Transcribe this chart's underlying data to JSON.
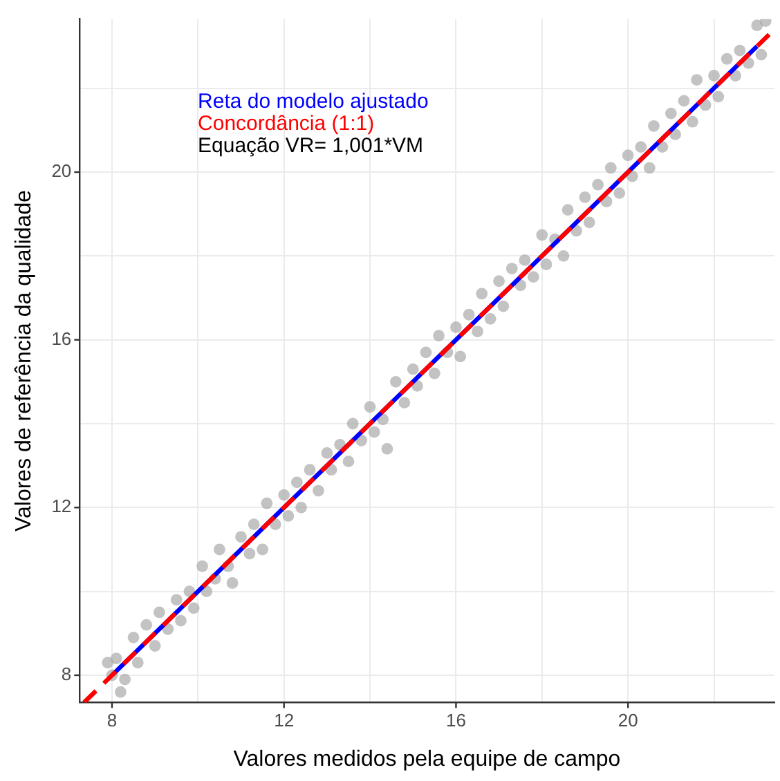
{
  "chart_data": {
    "type": "scatter",
    "xlabel": "Valores medidos pela equipe de campo",
    "ylabel": "Valores de referência da qualidade",
    "xlim": [
      7.25,
      23.4
    ],
    "ylim": [
      7.35,
      23.65
    ],
    "xticks": [
      8,
      {
        "value": 10,
        "label": null
      },
      12,
      {
        "value": 14,
        "label": null
      },
      16,
      {
        "value": 18,
        "label": null
      },
      20,
      {
        "value": 22,
        "label": null
      }
    ],
    "yticks": [
      8,
      {
        "value": 10,
        "label": null
      },
      12,
      {
        "value": 14,
        "label": null
      },
      16,
      {
        "value": 18,
        "label": null
      },
      20,
      {
        "value": 22,
        "label": null
      }
    ],
    "grid": true,
    "legend": "top left",
    "annotations": [
      "Equação VR= 1,001*VM"
    ],
    "series": [
      {
        "marker": "circle",
        "color": "#a9a9a9",
        "x": [
          7.9,
          8.0,
          8.1,
          8.2,
          8.3,
          8.5,
          8.6,
          8.8,
          9.0,
          9.1,
          9.3,
          9.5,
          9.6,
          9.8,
          9.9,
          10.1,
          10.2,
          10.4,
          10.5,
          10.7,
          10.8,
          11.0,
          11.2,
          11.3,
          11.5,
          11.6,
          11.8,
          12.0,
          12.1,
          12.3,
          12.4,
          12.6,
          12.8,
          13.0,
          13.1,
          13.3,
          13.5,
          13.6,
          13.8,
          14.0,
          14.1,
          14.3,
          14.4,
          14.6,
          14.8,
          15.0,
          15.1,
          15.3,
          15.5,
          15.6,
          15.8,
          16.0,
          16.1,
          16.3,
          16.5,
          16.6,
          16.8,
          17.0,
          17.1,
          17.3,
          17.5,
          17.6,
          17.8,
          18.0,
          18.1,
          18.3,
          18.5,
          18.6,
          18.8,
          19.0,
          19.1,
          19.3,
          19.5,
          19.6,
          19.8,
          20.0,
          20.1,
          20.3,
          20.5,
          20.6,
          20.8,
          21.0,
          21.1,
          21.3,
          21.5,
          21.6,
          21.8,
          22.0,
          22.1,
          22.3,
          22.5,
          22.6,
          22.8,
          23.0,
          23.1,
          23.2
        ],
        "values": [
          8.3,
          8.0,
          8.4,
          7.6,
          7.9,
          8.9,
          8.3,
          9.2,
          8.7,
          9.5,
          9.1,
          9.8,
          9.3,
          10.0,
          9.6,
          10.6,
          10.0,
          10.3,
          11.0,
          10.6,
          10.2,
          11.3,
          10.9,
          11.6,
          11.0,
          12.1,
          11.6,
          12.3,
          11.8,
          12.6,
          12.0,
          12.9,
          12.4,
          13.3,
          12.9,
          13.5,
          13.1,
          14.0,
          13.6,
          14.4,
          13.8,
          14.1,
          13.4,
          15.0,
          14.5,
          15.3,
          14.9,
          15.7,
          15.2,
          16.1,
          15.7,
          16.3,
          15.6,
          16.6,
          16.2,
          17.1,
          16.5,
          17.4,
          16.8,
          17.7,
          17.3,
          17.9,
          17.5,
          18.5,
          17.8,
          18.4,
          18.0,
          19.1,
          18.6,
          19.4,
          18.8,
          19.7,
          19.3,
          20.1,
          19.5,
          20.4,
          19.9,
          20.6,
          20.1,
          21.1,
          20.6,
          21.4,
          20.9,
          21.7,
          21.2,
          22.2,
          21.6,
          22.3,
          21.8,
          22.7,
          22.3,
          22.9,
          22.6,
          23.5,
          22.8,
          23.6
        ]
      },
      {
        "type": "line",
        "name": "Reta do modelo ajustado",
        "color": "#0000ff",
        "line_style": "solid",
        "x": [
          8,
          23
        ],
        "values": [
          8,
          23
        ]
      },
      {
        "type": "line",
        "name": "Concordância (1:1)",
        "color": "#ff0000",
        "line_style": "dashed",
        "x": [
          7.35,
          23.4
        ],
        "values": [
          7.35,
          23.4
        ]
      }
    ]
  }
}
